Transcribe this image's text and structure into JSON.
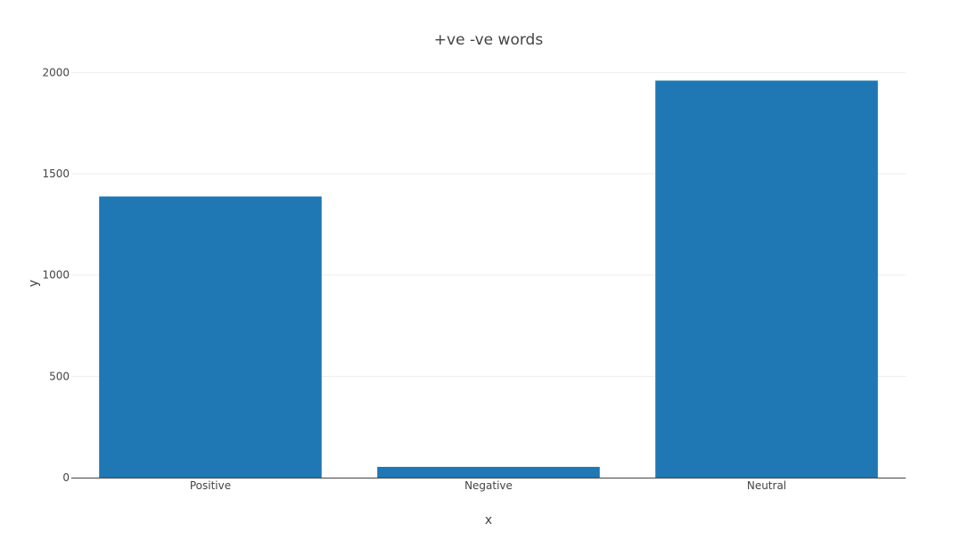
{
  "chart_data": {
    "type": "bar",
    "title": "+ve -ve words",
    "xlabel": "x",
    "ylabel": "y",
    "categories": [
      "Positive",
      "Negative",
      "Neutral"
    ],
    "values": [
      1388,
      53,
      1960
    ],
    "ylim": [
      0,
      2050
    ],
    "yticks": [
      0,
      500,
      1000,
      1500,
      2000
    ],
    "grid": true,
    "bar_color": "#1f77b4"
  }
}
